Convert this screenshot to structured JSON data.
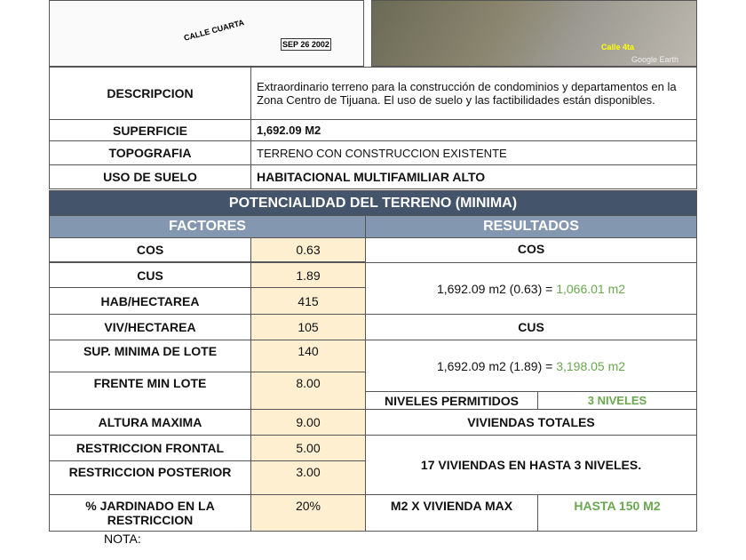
{
  "images": {
    "plan_street": "CALLE CUARTA",
    "plan_stamp": "SEP 26 2002",
    "aerial_street": "Calle 4ta",
    "aerial_credit": "Google Earth"
  },
  "info": {
    "descripcion_label": "DESCRIPCION",
    "descripcion": "Extraordinario terreno para la construcción de condominios y departamentos en la Zona Centro de Tijuana. El uso de suelo y las factibilidades están disponibles.",
    "superficie_label": "SUPERFICIE",
    "superficie": "1,692.09 M2",
    "topografia_label": "TOPOGRAFIA",
    "topografia": "TERRENO CON CONSTRUCCION EXISTENTE",
    "uso_label": "USO DE SUELO",
    "uso": "HABITACIONAL MULTIFAMILIAR ALTO"
  },
  "potencialidad": {
    "title": "POTENCIALIDAD DEL TERRENO (MINIMA)",
    "factores": "FACTORES",
    "resultados": "RESULTADOS",
    "factors": [
      {
        "label": "COS",
        "value": "0.63"
      },
      {
        "label": "CUS",
        "value": "1.89"
      },
      {
        "label": "HAB/HECTAREA",
        "value": "415"
      },
      {
        "label": "VIV/HECTAREA",
        "value": "105"
      },
      {
        "label": "SUP. MINIMA DE LOTE",
        "value": "140"
      },
      {
        "label": "FRENTE MIN LOTE",
        "value": "8.00"
      },
      {
        "label": "ALTURA MAXIMA",
        "value": "9.00"
      },
      {
        "label": "RESTRICCION FRONTAL",
        "value": "5.00"
      },
      {
        "label": "RESTRICCION POSTERIOR",
        "value": "3.00"
      },
      {
        "label": "% JARDINADO EN LA RESTRICCION",
        "value": "20%"
      }
    ],
    "cos_title": "COS",
    "cos_formula": "1,692.09 m2 (0.63) = ",
    "cos_result": "1,066.01 m2",
    "cus_title": "CUS",
    "cus_formula": "1,692.09 m2 (1.89) = ",
    "cus_result": "3,198.05 m2",
    "niveles_label": "NIVELES PERMITIDOS",
    "niveles_value": "3 NIVELES",
    "viviendas_title": "VIVIENDAS TOTALES",
    "viviendas_text": "17 VIVIENDAS EN HASTA 3 NIVELES.",
    "m2_label": "M2 X VIVIENDA MAX",
    "m2_value": "HASTA 150 M2"
  },
  "nota": "NOTA:"
}
